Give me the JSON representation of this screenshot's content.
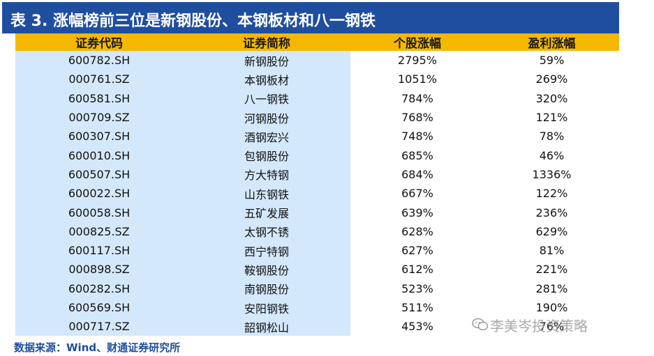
{
  "title": "表 3. 涨幅榜前三位是新钢股份、本钢板材和八一钢铁",
  "columns": [
    "证券代码",
    "证券简称",
    "个股涨幅",
    "盈利涨幅"
  ],
  "rows": [
    [
      "600782.SH",
      "新钢股份",
      "2795%",
      "59%"
    ],
    [
      "000761.SZ",
      "本钢板材",
      "1051%",
      "269%"
    ],
    [
      "600581.SH",
      "八一钢铁",
      "784%",
      "320%"
    ],
    [
      "000709.SZ",
      "河钢股份",
      "768%",
      "121%"
    ],
    [
      "600307.SH",
      "酒钢宏兴",
      "748%",
      "78%"
    ],
    [
      "600010.SH",
      "包钢股份",
      "685%",
      "46%"
    ],
    [
      "600507.SH",
      "方大特钢",
      "684%",
      "1336%"
    ],
    [
      "600022.SH",
      "山东钢铁",
      "667%",
      "122%"
    ],
    [
      "600058.SH",
      "五矿发展",
      "639%",
      "236%"
    ],
    [
      "000825.SZ",
      "太钢不锈",
      "628%",
      "629%"
    ],
    [
      "600117.SH",
      "西宁特钢",
      "627%",
      "81%"
    ],
    [
      "000898.SZ",
      "鞍钢股份",
      "612%",
      "221%"
    ],
    [
      "600282.SH",
      "南钢股份",
      "523%",
      "281%"
    ],
    [
      "600569.SH",
      "安阳钢铁",
      "511%",
      "190%"
    ],
    [
      "000717.SZ",
      "韶钢松山",
      "453%",
      "76%"
    ]
  ],
  "source": "数据来源：Wind、财通证券研究所",
  "watermark": "李美岑投资策略",
  "colors": {
    "title_bg": "#1f4e9e",
    "header_bg": "#f5b800",
    "highlight_bg": "#d4e8fb"
  }
}
